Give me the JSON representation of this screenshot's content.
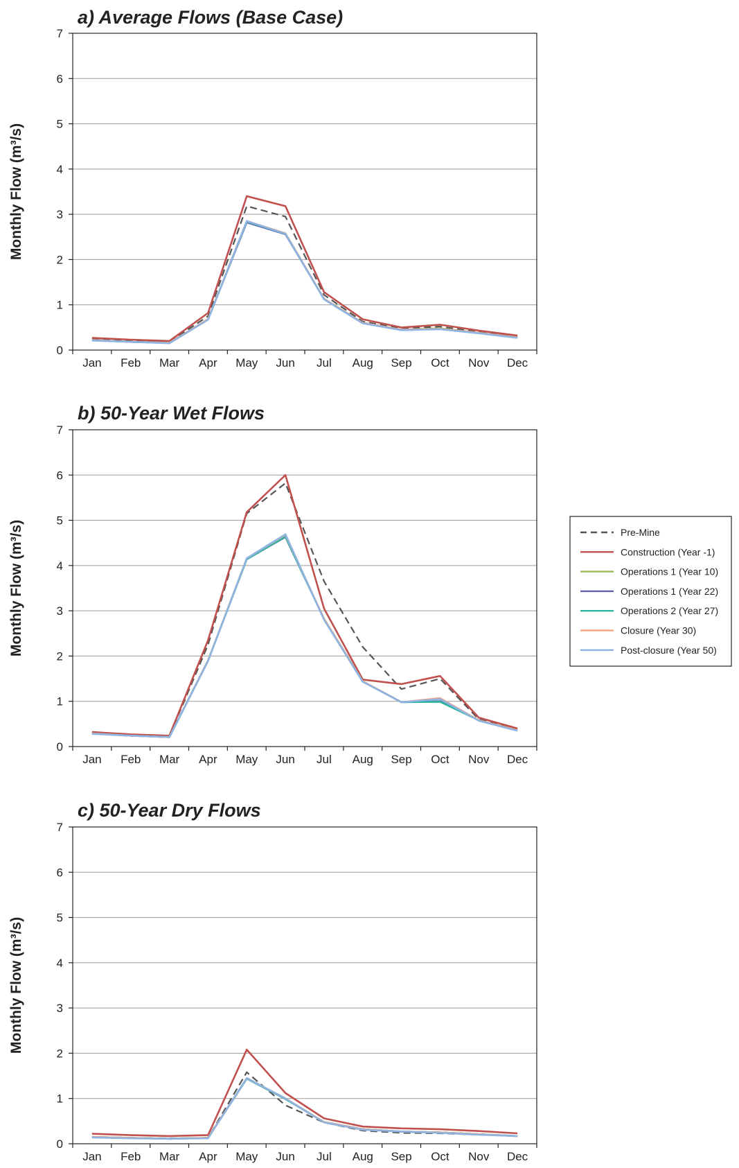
{
  "chart_data": [
    {
      "type": "line",
      "title": "a) Average Flows (Base Case)",
      "xlabel": "",
      "ylabel": "Monthly Flow (m³/s)",
      "ylim": [
        0,
        7
      ],
      "yticks": [
        0,
        1,
        2,
        3,
        4,
        5,
        6,
        7
      ],
      "categories": [
        "Jan",
        "Feb",
        "Mar",
        "Apr",
        "May",
        "Jun",
        "Jul",
        "Aug",
        "Sep",
        "Oct",
        "Nov",
        "Dec"
      ],
      "grid": true,
      "series": [
        {
          "name": "Pre-Mine",
          "values": [
            0.24,
            0.21,
            0.18,
            0.75,
            3.18,
            2.95,
            1.22,
            0.63,
            0.48,
            0.52,
            0.4,
            0.3
          ]
        },
        {
          "name": "Construction (Year -1)",
          "values": [
            0.27,
            0.23,
            0.2,
            0.82,
            3.4,
            3.18,
            1.28,
            0.68,
            0.5,
            0.56,
            0.43,
            0.32
          ]
        },
        {
          "name": "Operations 1 (Year 10)",
          "values": [
            0.22,
            0.18,
            0.16,
            0.68,
            2.84,
            2.58,
            1.13,
            0.6,
            0.45,
            0.48,
            0.38,
            0.28
          ]
        },
        {
          "name": "Operations 1 (Year 22)",
          "values": [
            0.22,
            0.18,
            0.16,
            0.68,
            2.82,
            2.56,
            1.13,
            0.6,
            0.45,
            0.47,
            0.38,
            0.28
          ]
        },
        {
          "name": "Operations 2 (Year 27)",
          "values": [
            0.22,
            0.18,
            0.16,
            0.68,
            2.84,
            2.57,
            1.13,
            0.6,
            0.45,
            0.47,
            0.38,
            0.28
          ]
        },
        {
          "name": "Closure (Year 30)",
          "values": [
            0.22,
            0.18,
            0.16,
            0.68,
            2.85,
            2.58,
            1.13,
            0.6,
            0.45,
            0.47,
            0.38,
            0.28
          ]
        },
        {
          "name": "Post-closure (Year 50)",
          "values": [
            0.21,
            0.18,
            0.15,
            0.67,
            2.85,
            2.57,
            1.12,
            0.59,
            0.44,
            0.46,
            0.37,
            0.27
          ]
        }
      ]
    },
    {
      "type": "line",
      "title": "b) 50-Year Wet Flows",
      "xlabel": "",
      "ylabel": "Monthly Flow (m³/s)",
      "ylim": [
        0,
        7
      ],
      "yticks": [
        0,
        1,
        2,
        3,
        4,
        5,
        6,
        7
      ],
      "categories": [
        "Jan",
        "Feb",
        "Mar",
        "Apr",
        "May",
        "Jun",
        "Jul",
        "Aug",
        "Sep",
        "Oct",
        "Nov",
        "Dec"
      ],
      "grid": true,
      "series": [
        {
          "name": "Pre-Mine",
          "values": [
            0.3,
            0.26,
            0.23,
            2.25,
            5.15,
            5.82,
            3.65,
            2.2,
            1.27,
            1.5,
            0.6,
            0.38
          ]
        },
        {
          "name": "Construction (Year -1)",
          "values": [
            0.32,
            0.27,
            0.24,
            2.35,
            5.18,
            6.0,
            3.05,
            1.48,
            1.38,
            1.56,
            0.64,
            0.4
          ]
        },
        {
          "name": "Operations 1 (Year 10)",
          "values": [
            0.29,
            0.24,
            0.21,
            1.9,
            4.15,
            4.65,
            2.82,
            1.44,
            0.98,
            1.06,
            0.58,
            0.36
          ]
        },
        {
          "name": "Operations 1 (Year 22)",
          "values": [
            0.29,
            0.24,
            0.21,
            1.9,
            4.14,
            4.63,
            2.82,
            1.44,
            0.98,
            1.0,
            0.58,
            0.36
          ]
        },
        {
          "name": "Operations 2 (Year 27)",
          "values": [
            0.29,
            0.24,
            0.21,
            1.9,
            4.14,
            4.64,
            2.82,
            1.44,
            0.98,
            0.99,
            0.58,
            0.36
          ]
        },
        {
          "name": "Closure (Year 30)",
          "values": [
            0.29,
            0.24,
            0.21,
            1.9,
            4.16,
            4.68,
            2.82,
            1.44,
            0.98,
            1.07,
            0.58,
            0.36
          ]
        },
        {
          "name": "Post-closure (Year 50)",
          "values": [
            0.28,
            0.24,
            0.21,
            1.89,
            4.16,
            4.69,
            2.8,
            1.43,
            0.98,
            1.05,
            0.57,
            0.35
          ]
        }
      ]
    },
    {
      "type": "line",
      "title": "c) 50-Year Dry Flows",
      "xlabel": "",
      "ylabel": "Monthly Flow (m³/s)",
      "ylim": [
        0,
        7
      ],
      "yticks": [
        0,
        1,
        2,
        3,
        4,
        5,
        6,
        7
      ],
      "categories": [
        "Jan",
        "Feb",
        "Mar",
        "Apr",
        "May",
        "Jun",
        "Jul",
        "Aug",
        "Sep",
        "Oct",
        "Nov",
        "Dec"
      ],
      "grid": true,
      "series": [
        {
          "name": "Pre-Mine",
          "values": [
            0.15,
            0.13,
            0.12,
            0.13,
            1.58,
            0.85,
            0.47,
            0.29,
            0.24,
            0.23,
            0.2,
            0.17
          ]
        },
        {
          "name": "Construction (Year -1)",
          "values": [
            0.22,
            0.19,
            0.17,
            0.19,
            2.08,
            1.12,
            0.56,
            0.38,
            0.34,
            0.32,
            0.28,
            0.23
          ]
        },
        {
          "name": "Operations 1 (Year 10)",
          "values": [
            0.15,
            0.13,
            0.11,
            0.13,
            1.45,
            1.0,
            0.48,
            0.32,
            0.27,
            0.25,
            0.21,
            0.17
          ]
        },
        {
          "name": "Operations 1 (Year 22)",
          "values": [
            0.15,
            0.13,
            0.11,
            0.13,
            1.44,
            0.99,
            0.48,
            0.32,
            0.27,
            0.25,
            0.21,
            0.17
          ]
        },
        {
          "name": "Operations 2 (Year 27)",
          "values": [
            0.15,
            0.13,
            0.11,
            0.13,
            1.44,
            0.99,
            0.48,
            0.32,
            0.27,
            0.25,
            0.21,
            0.17
          ]
        },
        {
          "name": "Closure (Year 30)",
          "values": [
            0.15,
            0.13,
            0.11,
            0.13,
            1.45,
            1.0,
            0.48,
            0.32,
            0.27,
            0.25,
            0.21,
            0.17
          ]
        },
        {
          "name": "Post-closure (Year 50)",
          "values": [
            0.14,
            0.12,
            0.11,
            0.12,
            1.45,
            1.0,
            0.47,
            0.31,
            0.27,
            0.24,
            0.2,
            0.17
          ]
        }
      ]
    }
  ],
  "legend": {
    "placement": "right",
    "items": [
      {
        "label": "Pre-Mine",
        "color": "#555555",
        "dashed": true
      },
      {
        "label": "Construction (Year -1)",
        "color": "#c0504d",
        "dashed": false
      },
      {
        "label": "Operations 1 (Year 10)",
        "color": "#9bbb59",
        "dashed": false
      },
      {
        "label": "Operations 1 (Year 22)",
        "color": "#6060a8",
        "dashed": false
      },
      {
        "label": "Operations 2 (Year 27)",
        "color": "#2db5a0",
        "dashed": false
      },
      {
        "label": "Closure (Year 30)",
        "color": "#f4a582",
        "dashed": false
      },
      {
        "label": "Post-closure (Year 50)",
        "color": "#8eb4e3",
        "dashed": false
      }
    ]
  }
}
